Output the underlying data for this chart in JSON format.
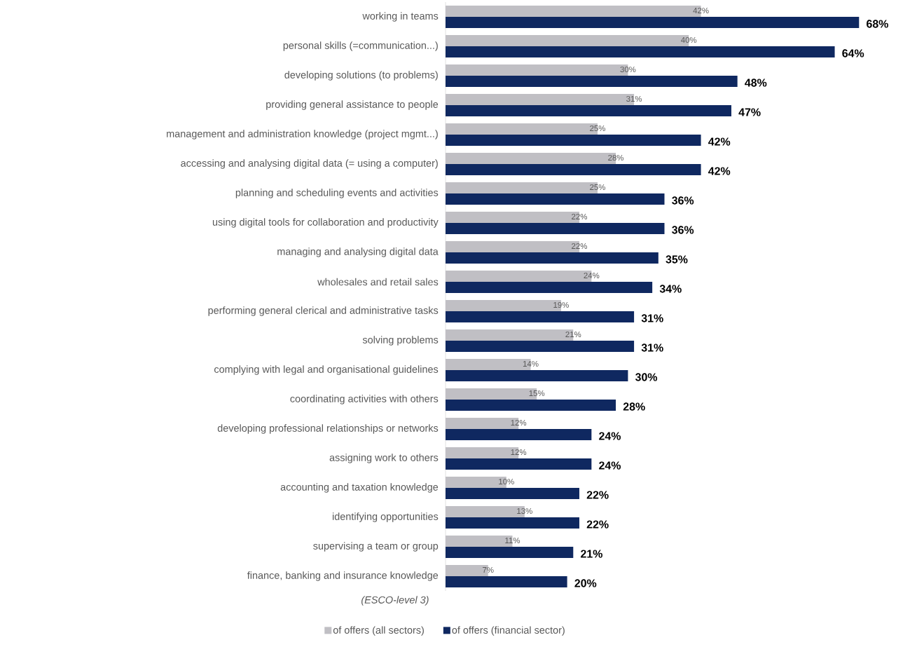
{
  "chart_data": {
    "type": "bar",
    "orientation": "horizontal",
    "categories": [
      "working in teams",
      "personal skills (=communication...)",
      "developing solutions (to problems)",
      "providing general assistance to people",
      "management and administration knowledge (project mgmt...)",
      "accessing and analysing digital data (= using a computer)",
      "planning and scheduling events and activities",
      "using digital tools for collaboration and productivity",
      "managing and analysing digital data",
      "wholesales and retail sales",
      "performing general clerical and administrative tasks",
      "solving problems",
      "complying with legal and organisational guidelines",
      "coordinating activities with others",
      "developing professional relationships or networks",
      "assigning work to others",
      "accounting and taxation knowledge",
      "identifying opportunities",
      "supervising a team or group",
      "finance, banking and insurance knowledge"
    ],
    "series": [
      {
        "name": "of offers (all sectors)",
        "color": "#c0bfc4",
        "values": [
          42,
          40,
          30,
          31,
          25,
          28,
          25,
          22,
          22,
          24,
          19,
          21,
          14,
          15,
          12,
          12,
          10,
          13,
          11,
          7
        ],
        "value_labels": [
          "42%",
          "40%",
          "30%",
          "31%",
          "25%",
          "28%",
          "25%",
          "22%",
          "22%",
          "24%",
          "19%",
          "21%",
          "14%",
          "15%",
          "12%",
          "12%",
          "10%",
          "13%",
          "11%",
          "7%"
        ]
      },
      {
        "name": "of offers (financial sector)",
        "color": "#0f2860",
        "values": [
          68,
          64,
          48,
          47,
          42,
          42,
          36,
          36,
          35,
          34,
          31,
          31,
          30,
          28,
          24,
          24,
          22,
          22,
          21,
          20
        ],
        "value_labels": [
          "68%",
          "64%",
          "48%",
          "47%",
          "42%",
          "42%",
          "36%",
          "36%",
          "35%",
          "34%",
          "31%",
          "31%",
          "30%",
          "28%",
          "24%",
          "24%",
          "22%",
          "22%",
          "21%",
          "20%"
        ]
      }
    ],
    "annotations": [
      "(ESCO-level 3)"
    ],
    "legend": "bottom",
    "tick_labels": "y"
  }
}
